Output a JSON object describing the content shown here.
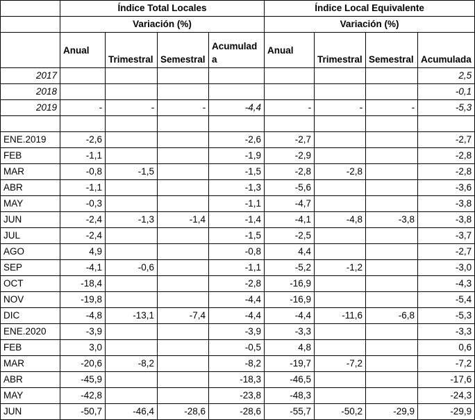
{
  "group_titles": [
    "Índice Total Locales",
    "Índice Local Equivalente"
  ],
  "variation_label": "Variación (%)",
  "col_headers": [
    "Anual",
    "Trimestral",
    "Semestral",
    "Acumulada"
  ],
  "years": [
    {
      "label": "2017",
      "v": [
        "",
        "",
        "",
        "",
        "",
        "",
        "",
        "2,5"
      ]
    },
    {
      "label": "2018",
      "v": [
        "",
        "",
        "",
        "",
        "",
        "",
        "",
        "-0,1"
      ]
    },
    {
      "label": "2019",
      "v": [
        "-",
        "-",
        "-",
        "-4,4",
        "-",
        "-",
        "-",
        "-5,3"
      ]
    }
  ],
  "months": [
    {
      "label": "ENE.2019",
      "v": [
        "-2,6",
        "",
        "",
        "-2,6",
        "-2,7",
        "",
        "",
        "-2,7"
      ]
    },
    {
      "label": "FEB",
      "v": [
        "-1,1",
        "",
        "",
        "-1,9",
        "-2,9",
        "",
        "",
        "-2,8"
      ]
    },
    {
      "label": "MAR",
      "v": [
        "-0,8",
        "-1,5",
        "",
        "-1,5",
        "-2,8",
        "-2,8",
        "",
        "-2,8"
      ]
    },
    {
      "label": "ABR",
      "v": [
        "-1,1",
        "",
        "",
        "-1,3",
        "-5,6",
        "",
        "",
        "-3,6"
      ]
    },
    {
      "label": "MAY",
      "v": [
        "-0,3",
        "",
        "",
        "-1,1",
        "-4,7",
        "",
        "",
        "-3,8"
      ]
    },
    {
      "label": "JUN",
      "v": [
        "-2,4",
        "-1,3",
        "-1,4",
        "-1,4",
        "-4,1",
        "-4,8",
        "-3,8",
        "-3,8"
      ]
    },
    {
      "label": "JUL",
      "v": [
        "-2,4",
        "",
        "",
        "-1,5",
        "-2,5",
        "",
        "",
        "-3,7"
      ]
    },
    {
      "label": "AGO",
      "v": [
        "4,9",
        "",
        "",
        "-0,8",
        "4,4",
        "",
        "",
        "-2,7"
      ]
    },
    {
      "label": "SEP",
      "v": [
        "-4,1",
        "-0,6",
        "",
        "-1,1",
        "-5,2",
        "-1,2",
        "",
        "-3,0"
      ]
    },
    {
      "label": "OCT",
      "v": [
        "-18,4",
        "",
        "",
        "-2,8",
        "-16,9",
        "",
        "",
        "-4,3"
      ]
    },
    {
      "label": "NOV",
      "v": [
        "-19,8",
        "",
        "",
        "-4,4",
        "-16,9",
        "",
        "",
        "-5,4"
      ]
    },
    {
      "label": "DIC",
      "v": [
        "-4,8",
        "-13,1",
        "-7,4",
        "-4,4",
        "-4,4",
        "-11,6",
        "-6,8",
        "-5,3"
      ]
    },
    {
      "label": "ENE.2020",
      "v": [
        "-3,9",
        "",
        "",
        "-3,9",
        "-3,3",
        "",
        "",
        "-3,3"
      ]
    },
    {
      "label": "FEB",
      "v": [
        "3,0",
        "",
        "",
        "-0,5",
        "4,8",
        "",
        "",
        "0,6"
      ]
    },
    {
      "label": "MAR",
      "v": [
        "-20,6",
        "-8,2",
        "",
        "-8,2",
        "-19,7",
        "-7,2",
        "",
        "-7,2"
      ]
    },
    {
      "label": "ABR",
      "v": [
        "-45,9",
        "",
        "",
        "-18,3",
        "-46,5",
        "",
        "",
        "-17,6"
      ]
    },
    {
      "label": "MAY",
      "v": [
        "-42,8",
        "",
        "",
        "-23,8",
        "-48,3",
        "",
        "",
        "-24,3"
      ]
    },
    {
      "label": "JUN",
      "v": [
        "-50,7",
        "-46,4",
        "-28,6",
        "-28,6",
        "-55,7",
        "-50,2",
        "-29,9",
        "-29,9"
      ]
    }
  ]
}
